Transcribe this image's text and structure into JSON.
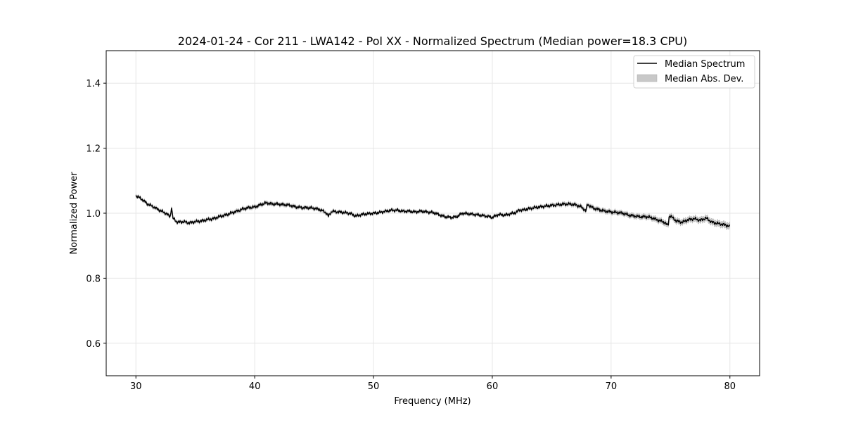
{
  "chart_data": {
    "type": "line",
    "title": "2024-01-24 - Cor 211 - LWA142 - Pol XX - Normalized Spectrum (Median power=18.3 CPU)",
    "xlabel": "Frequency (MHz)",
    "ylabel": "Normalized Power",
    "xlim": [
      27.5,
      82.5
    ],
    "ylim": [
      0.5,
      1.5
    ],
    "xticks": [
      30,
      40,
      50,
      60,
      70,
      80
    ],
    "xtick_labels": [
      "30",
      "40",
      "50",
      "60",
      "70",
      "80"
    ],
    "yticks": [
      0.6,
      0.8,
      1.0,
      1.2,
      1.4
    ],
    "ytick_labels": [
      "0.6",
      "0.8",
      "1.0",
      "1.2",
      "1.4"
    ],
    "grid": true,
    "legend": {
      "placement": "top-right",
      "entries": [
        "Median Spectrum",
        "Median Abs. Dev."
      ]
    },
    "series": [
      {
        "name": "Median Spectrum",
        "color": "#000000",
        "x": [
          30,
          30.5,
          31,
          31.5,
          32,
          32.5,
          32.9,
          33.0,
          33.1,
          33.5,
          34,
          34.5,
          35,
          35.5,
          36,
          36.5,
          37,
          37.5,
          38,
          38.5,
          39,
          39.5,
          40,
          40.5,
          41,
          41.5,
          42,
          42.5,
          43,
          43.5,
          44,
          44.5,
          45,
          45.5,
          46,
          46.2,
          46.5,
          47,
          47.5,
          48,
          48.5,
          49,
          49.5,
          50,
          50.5,
          51,
          51.5,
          52,
          52.5,
          53,
          53.5,
          54,
          54.5,
          55,
          55.5,
          56,
          56.5,
          57,
          57.5,
          58,
          58.5,
          59,
          59.5,
          60,
          60.5,
          61,
          61.5,
          62,
          62.3,
          62.5,
          63,
          63.5,
          64,
          64.5,
          65,
          65.5,
          66,
          66.5,
          67,
          67.5,
          67.9,
          68,
          68.5,
          69,
          69.5,
          70,
          70.5,
          71,
          71.5,
          72,
          72.5,
          73,
          73.5,
          74,
          74.5,
          74.8,
          74.9,
          75.5,
          76,
          76.5,
          77,
          77.5,
          78,
          78.5,
          79,
          79.5,
          80
        ],
        "y": [
          1.054,
          1.043,
          1.028,
          1.019,
          1.009,
          1.0,
          0.989,
          1.02,
          0.985,
          0.972,
          0.974,
          0.97,
          0.974,
          0.976,
          0.98,
          0.983,
          0.989,
          0.994,
          1.0,
          1.006,
          1.013,
          1.017,
          1.019,
          1.026,
          1.032,
          1.028,
          1.028,
          1.026,
          1.024,
          1.019,
          1.017,
          1.017,
          1.015,
          1.011,
          1.002,
          0.991,
          1.006,
          1.004,
          1.002,
          1.0,
          0.991,
          0.996,
          0.998,
          1.0,
          1.002,
          1.006,
          1.009,
          1.009,
          1.006,
          1.006,
          1.004,
          1.006,
          1.004,
          1.002,
          0.996,
          0.989,
          0.987,
          0.989,
          1.0,
          0.998,
          0.996,
          0.994,
          0.991,
          0.987,
          0.996,
          0.994,
          0.998,
          1.002,
          1.011,
          1.009,
          1.013,
          1.017,
          1.019,
          1.022,
          1.024,
          1.026,
          1.028,
          1.028,
          1.026,
          1.019,
          1.006,
          1.028,
          1.015,
          1.011,
          1.006,
          1.004,
          1.002,
          1.0,
          0.994,
          0.991,
          0.989,
          0.989,
          0.985,
          0.978,
          0.972,
          0.961,
          0.994,
          0.976,
          0.972,
          0.98,
          0.983,
          0.978,
          0.985,
          0.972,
          0.968,
          0.965,
          0.959
        ]
      },
      {
        "name": "Median Abs. Dev.",
        "color": "#c8c8c8",
        "x": [
          30,
          40,
          50,
          60,
          70,
          80
        ],
        "mad": [
          0.004,
          0.005,
          0.004,
          0.004,
          0.006,
          0.009
        ]
      }
    ]
  }
}
